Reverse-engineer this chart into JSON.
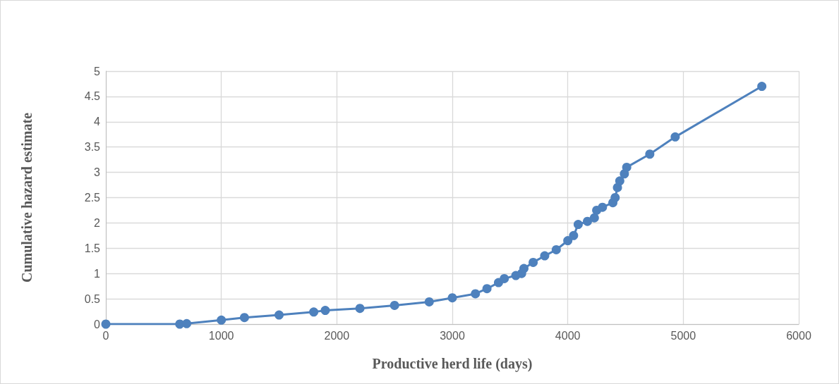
{
  "chart_data": {
    "type": "line",
    "xlabel": "Productive herd life (days)",
    "ylabel": "Cumulative hazard estimate",
    "x": [
      0,
      640,
      700,
      1000,
      1200,
      1500,
      1800,
      1900,
      2200,
      2500,
      2800,
      3000,
      3200,
      3300,
      3400,
      3450,
      3550,
      3600,
      3620,
      3700,
      3800,
      3900,
      4000,
      4050,
      4090,
      4170,
      4230,
      4250,
      4300,
      4390,
      4410,
      4430,
      4450,
      4490,
      4510,
      4710,
      4930,
      5680
    ],
    "series": [
      {
        "color": "#4e81bd",
        "values": [
          0,
          0,
          0.01,
          0.08,
          0.13,
          0.18,
          0.24,
          0.27,
          0.31,
          0.37,
          0.44,
          0.52,
          0.6,
          0.7,
          0.82,
          0.9,
          0.96,
          1.0,
          1.1,
          1.22,
          1.35,
          1.47,
          1.65,
          1.75,
          1.97,
          2.03,
          2.1,
          2.25,
          2.31,
          2.4,
          2.5,
          2.7,
          2.83,
          2.97,
          3.1,
          3.36,
          3.7,
          4.7
        ]
      }
    ],
    "xlim": [
      0,
      6000
    ],
    "xticks": [
      0,
      1000,
      2000,
      3000,
      4000,
      5000,
      6000
    ],
    "ylim": [
      0,
      5
    ],
    "yticks": [
      0,
      0.5,
      1,
      1.5,
      2,
      2.5,
      3,
      3.5,
      4,
      4.5,
      5
    ],
    "grid": true,
    "marker": "circle",
    "line_style": "solid"
  }
}
